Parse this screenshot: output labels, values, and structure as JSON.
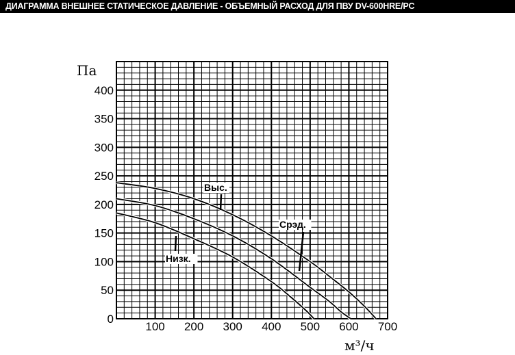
{
  "page_title": "ДИАГРАММА ВНЕШНЕЕ СТАТИЧЕСКОЕ ДАВЛЕНИЕ - ОБЪЕМНЫЙ РАСХОД  ДЛЯ ПВУ  DV-600HRE/PC",
  "chart_data": {
    "type": "line",
    "title": "",
    "xlabel": "м³/ч",
    "ylabel": "Па",
    "xlim": [
      0,
      700
    ],
    "ylim": [
      0,
      450
    ],
    "grid": true,
    "x_ticks": [
      "100",
      "200",
      "300",
      "400",
      "500",
      "600",
      "700"
    ],
    "y_ticks": [
      "0",
      "50",
      "100",
      "150",
      "200",
      "250",
      "300",
      "350",
      "400"
    ],
    "series": [
      {
        "name": "Выс.",
        "x": [
          0,
          100,
          200,
          300,
          400,
          500,
          550,
          600,
          640,
          670
        ],
        "y": [
          238,
          228,
          210,
          182,
          145,
          100,
          74,
          47,
          22,
          0
        ]
      },
      {
        "name": "Срэд.",
        "x": [
          0,
          100,
          200,
          300,
          400,
          500,
          550,
          580,
          605
        ],
        "y": [
          210,
          198,
          175,
          145,
          105,
          55,
          30,
          12,
          0
        ]
      },
      {
        "name": "Низк.",
        "x": [
          0,
          100,
          200,
          300,
          400,
          450,
          490,
          510
        ],
        "y": [
          185,
          168,
          140,
          108,
          65,
          38,
          14,
          0
        ]
      }
    ]
  }
}
